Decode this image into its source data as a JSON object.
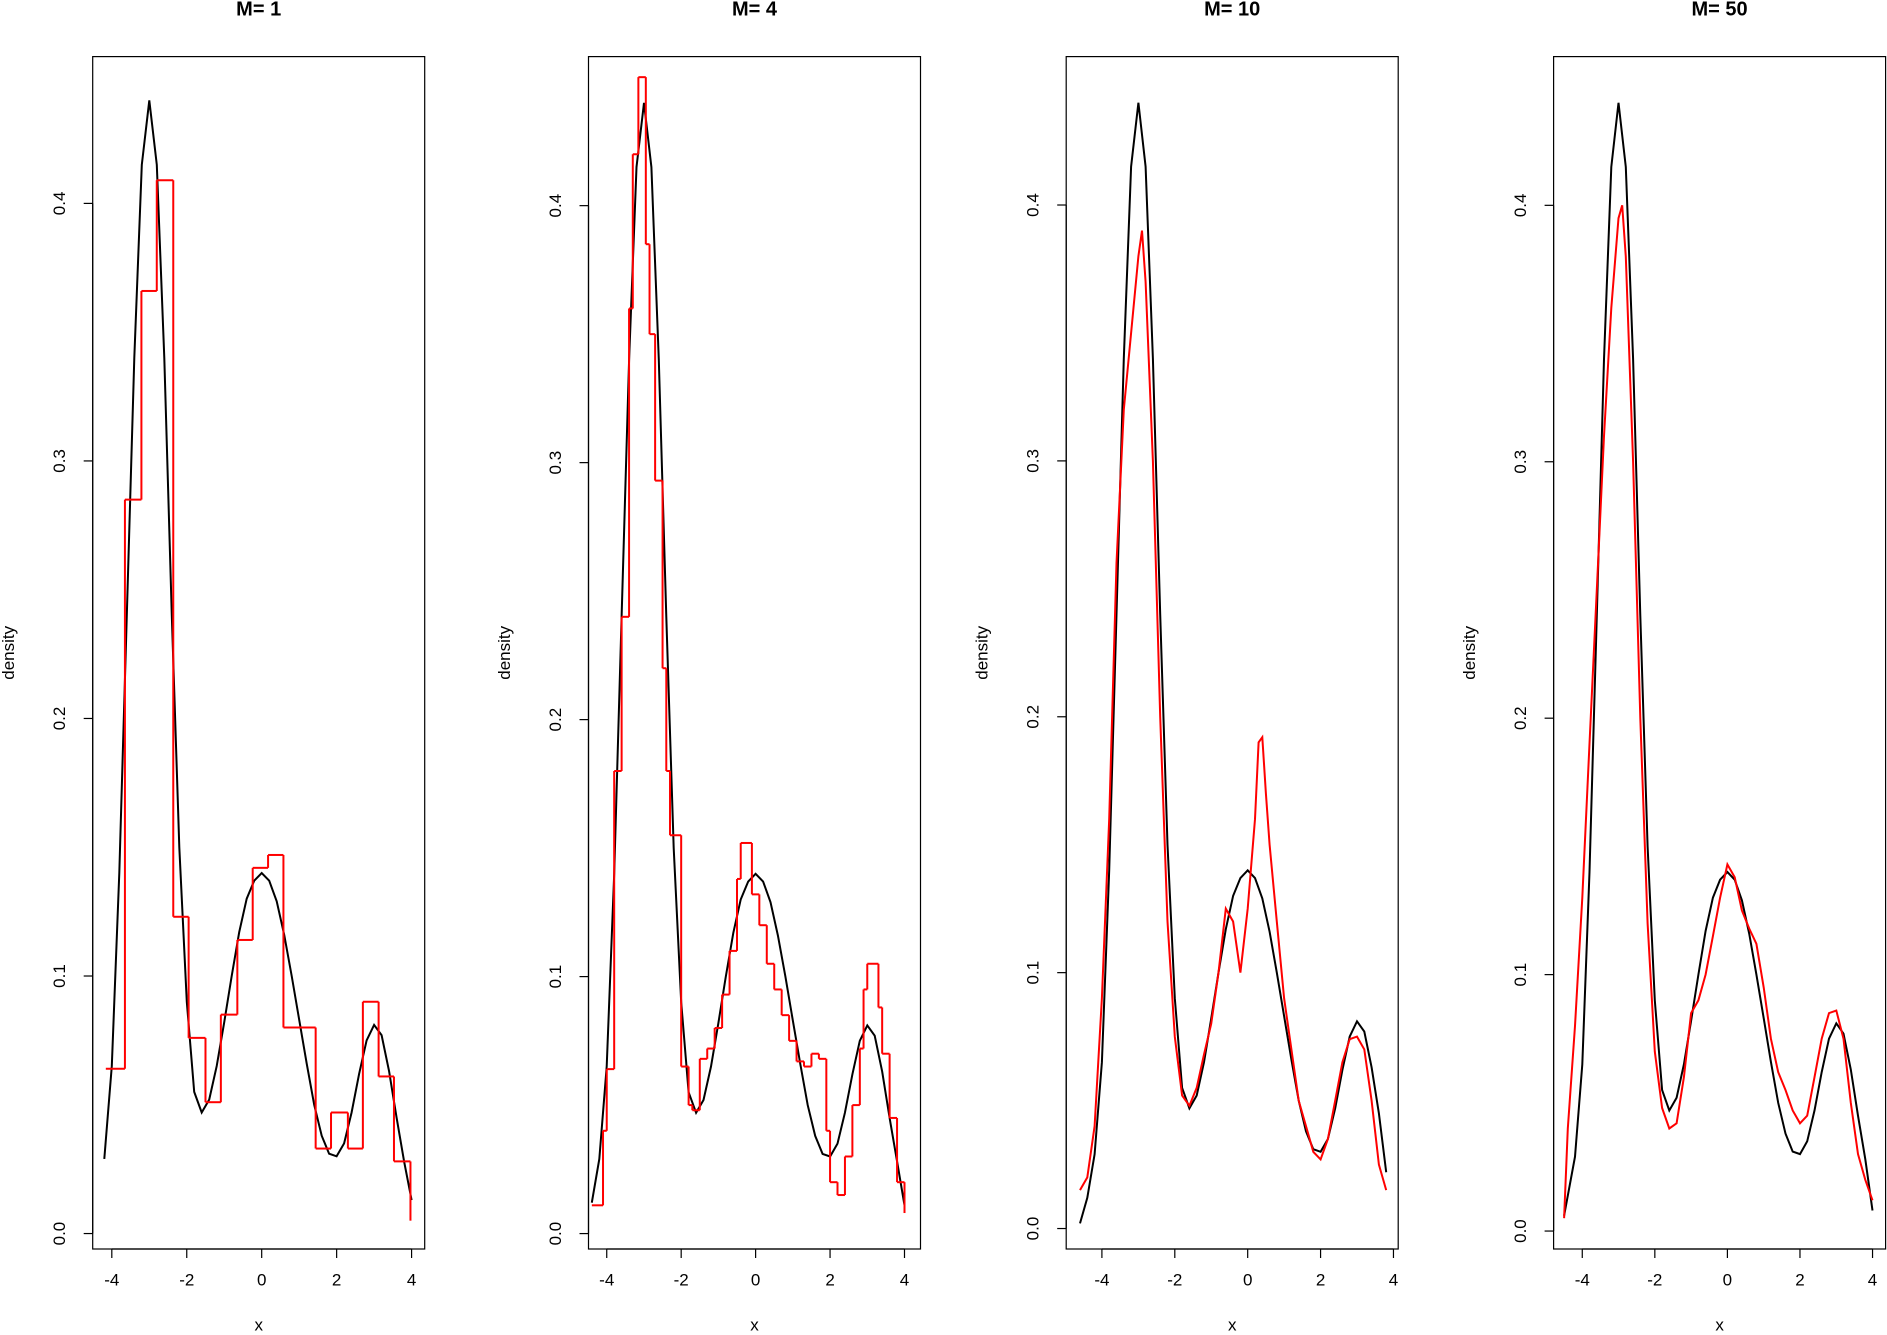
{
  "chart_data": [
    {
      "type": "line",
      "title": "M= 1",
      "xlabel": "x",
      "ylabel": "density",
      "xlim": [
        -4.51,
        4.35
      ],
      "ylim": [
        -0.006,
        0.457
      ],
      "xticks": [
        -4,
        -2,
        0,
        2,
        4
      ],
      "yticks": [
        {
          "value": 0,
          "label": "0.0"
        },
        0.1,
        0.2,
        0.3,
        0.4
      ],
      "series": [
        {
          "color": "#000000",
          "step": false,
          "x": [
            -4.2,
            -4.0,
            -3.8,
            -3.6,
            -3.4,
            -3.2,
            -3.0,
            -2.8,
            -2.6,
            -2.4,
            -2.2,
            -2.0,
            -1.8,
            -1.6,
            -1.4,
            -1.2,
            -1.0,
            -0.8,
            -0.6,
            -0.4,
            -0.2,
            0,
            0.2,
            0.4,
            0.6,
            0.8,
            1.0,
            1.2,
            1.4,
            1.6,
            1.8,
            2.0,
            2.2,
            2.4,
            2.6,
            2.8,
            3.0,
            3.2,
            3.4,
            3.6,
            3.8,
            4.0
          ],
          "values": [
            0.029,
            0.065,
            0.14,
            0.24,
            0.34,
            0.415,
            0.44,
            0.415,
            0.34,
            0.24,
            0.15,
            0.09,
            0.055,
            0.047,
            0.052,
            0.065,
            0.082,
            0.1,
            0.117,
            0.13,
            0.137,
            0.14,
            0.137,
            0.129,
            0.116,
            0.1,
            0.083,
            0.066,
            0.05,
            0.038,
            0.031,
            0.03,
            0.035,
            0.047,
            0.062,
            0.075,
            0.081,
            0.077,
            0.063,
            0.045,
            0.028,
            0.013
          ]
        },
        {
          "color": "#ff0000",
          "step": true,
          "x": [
            -4.16,
            -3.65,
            -3.21,
            -2.8,
            -2.36,
            -1.95,
            -1.5,
            -1.09,
            -0.65,
            -0.24,
            0.17,
            0.58,
            1.44,
            1.85,
            2.3,
            2.7,
            3.12,
            3.53,
            3.97
          ],
          "values": [
            0.064,
            0.285,
            0.366,
            0.409,
            0.123,
            0.076,
            0.051,
            0.085,
            0.114,
            0.142,
            0.147,
            0.08,
            0.033,
            0.047,
            0.033,
            0.09,
            0.061,
            0.028,
            0.005
          ]
        }
      ]
    },
    {
      "type": "line",
      "title": "M= 4",
      "xlabel": "x",
      "ylabel": "density",
      "xlim": [
        -4.49,
        4.43
      ],
      "ylim": [
        -0.006,
        0.458
      ],
      "xticks": [
        -4,
        -2,
        0,
        2,
        4
      ],
      "yticks": [
        {
          "value": 0,
          "label": "0.0"
        },
        0.1,
        0.2,
        0.3,
        0.4
      ],
      "series": [
        {
          "color": "#000000",
          "step": false,
          "x": [
            -4.4,
            -4.2,
            -4.0,
            -3.8,
            -3.6,
            -3.4,
            -3.2,
            -3.0,
            -2.8,
            -2.6,
            -2.4,
            -2.2,
            -2.0,
            -1.8,
            -1.6,
            -1.4,
            -1.2,
            -1.0,
            -0.8,
            -0.6,
            -0.4,
            -0.2,
            0,
            0.2,
            0.4,
            0.6,
            0.8,
            1.0,
            1.2,
            1.4,
            1.6,
            1.8,
            2.0,
            2.2,
            2.4,
            2.6,
            2.8,
            3.0,
            3.2,
            3.4,
            3.6,
            3.8,
            4.0
          ],
          "values": [
            0.012,
            0.029,
            0.065,
            0.14,
            0.24,
            0.34,
            0.415,
            0.44,
            0.415,
            0.34,
            0.24,
            0.15,
            0.09,
            0.055,
            0.047,
            0.052,
            0.065,
            0.082,
            0.1,
            0.117,
            0.13,
            0.137,
            0.14,
            0.137,
            0.129,
            0.116,
            0.1,
            0.083,
            0.066,
            0.05,
            0.038,
            0.031,
            0.03,
            0.035,
            0.047,
            0.062,
            0.075,
            0.081,
            0.077,
            0.063,
            0.045,
            0.028,
            0.011
          ]
        },
        {
          "color": "#ff0000",
          "step": true,
          "x": [
            -4.4,
            -4.1,
            -4.0,
            -3.8,
            -3.6,
            -3.4,
            -3.3,
            -3.15,
            -2.95,
            -2.85,
            -2.7,
            -2.5,
            -2.4,
            -2.3,
            -2.0,
            -1.8,
            -1.7,
            -1.5,
            -1.3,
            -1.1,
            -0.9,
            -0.7,
            -0.5,
            -0.4,
            -0.1,
            0.1,
            0.3,
            0.5,
            0.7,
            0.9,
            1.1,
            1.3,
            1.5,
            1.7,
            1.9,
            2.0,
            2.2,
            2.4,
            2.6,
            2.8,
            2.9,
            3.0,
            3.3,
            3.4,
            3.6,
            3.8,
            4.0
          ],
          "values": [
            0.011,
            0.04,
            0.064,
            0.18,
            0.24,
            0.36,
            0.42,
            0.45,
            0.385,
            0.35,
            0.293,
            0.22,
            0.18,
            0.155,
            0.065,
            0.05,
            0.048,
            0.068,
            0.072,
            0.08,
            0.093,
            0.11,
            0.138,
            0.152,
            0.132,
            0.12,
            0.105,
            0.095,
            0.085,
            0.075,
            0.067,
            0.065,
            0.07,
            0.068,
            0.04,
            0.02,
            0.015,
            0.03,
            0.05,
            0.072,
            0.095,
            0.105,
            0.088,
            0.07,
            0.045,
            0.02,
            0.008
          ]
        }
      ]
    },
    {
      "type": "line",
      "title": "M= 10",
      "xlabel": "x",
      "ylabel": "density",
      "xlim": [
        -4.98,
        4.13
      ],
      "ylim": [
        -0.008,
        0.458
      ],
      "xticks": [
        -4,
        -2,
        0,
        2,
        4
      ],
      "yticks": [
        {
          "value": 0,
          "label": "0.0"
        },
        0.1,
        0.2,
        0.3,
        0.4
      ],
      "series": [
        {
          "color": "#000000",
          "step": false,
          "x": [
            -4.6,
            -4.4,
            -4.2,
            -4.0,
            -3.8,
            -3.6,
            -3.4,
            -3.2,
            -3.0,
            -2.8,
            -2.6,
            -2.4,
            -2.2,
            -2.0,
            -1.8,
            -1.6,
            -1.4,
            -1.2,
            -1.0,
            -0.8,
            -0.6,
            -0.4,
            -0.2,
            0,
            0.2,
            0.4,
            0.6,
            0.8,
            1.0,
            1.2,
            1.4,
            1.6,
            1.8,
            2.0,
            2.2,
            2.4,
            2.6,
            2.8,
            3.0,
            3.2,
            3.4,
            3.6,
            3.8
          ],
          "values": [
            0.002,
            0.012,
            0.029,
            0.065,
            0.14,
            0.24,
            0.34,
            0.415,
            0.44,
            0.415,
            0.34,
            0.24,
            0.15,
            0.09,
            0.055,
            0.047,
            0.052,
            0.065,
            0.082,
            0.1,
            0.117,
            0.13,
            0.137,
            0.14,
            0.137,
            0.129,
            0.116,
            0.1,
            0.083,
            0.066,
            0.05,
            0.038,
            0.031,
            0.03,
            0.035,
            0.047,
            0.062,
            0.075,
            0.081,
            0.077,
            0.063,
            0.045,
            0.022
          ]
        },
        {
          "color": "#ff0000",
          "step": false,
          "x": [
            -4.6,
            -4.4,
            -4.2,
            -4.0,
            -3.8,
            -3.6,
            -3.4,
            -3.2,
            -3.0,
            -2.9,
            -2.8,
            -2.6,
            -2.4,
            -2.2,
            -2.0,
            -1.8,
            -1.6,
            -1.4,
            -1.2,
            -1.0,
            -0.8,
            -0.6,
            -0.4,
            -0.2,
            0,
            0.2,
            0.3,
            0.4,
            0.5,
            0.6,
            0.8,
            1.0,
            1.2,
            1.4,
            1.6,
            1.8,
            2.0,
            2.2,
            2.4,
            2.6,
            2.8,
            3.0,
            3.2,
            3.4,
            3.6,
            3.8
          ],
          "values": [
            0.015,
            0.02,
            0.04,
            0.09,
            0.16,
            0.26,
            0.32,
            0.35,
            0.38,
            0.39,
            0.37,
            0.3,
            0.2,
            0.12,
            0.075,
            0.052,
            0.048,
            0.055,
            0.068,
            0.08,
            0.1,
            0.125,
            0.12,
            0.1,
            0.125,
            0.16,
            0.19,
            0.192,
            0.17,
            0.15,
            0.12,
            0.09,
            0.07,
            0.05,
            0.04,
            0.03,
            0.027,
            0.035,
            0.05,
            0.065,
            0.074,
            0.075,
            0.07,
            0.05,
            0.025,
            0.015
          ]
        }
      ]
    },
    {
      "type": "line",
      "title": "M= 50",
      "xlabel": "x",
      "ylabel": "density",
      "xlim": [
        -4.79,
        4.36
      ],
      "ylim": [
        -0.007,
        0.458
      ],
      "xticks": [
        -4,
        -2,
        0,
        2,
        4
      ],
      "yticks": [
        {
          "value": 0,
          "label": "0.0"
        },
        0.1,
        0.2,
        0.3,
        0.4
      ],
      "series": [
        {
          "color": "#000000",
          "step": false,
          "x": [
            -4.5,
            -4.2,
            -4.0,
            -3.8,
            -3.6,
            -3.4,
            -3.2,
            -3.0,
            -2.8,
            -2.6,
            -2.4,
            -2.2,
            -2.0,
            -1.8,
            -1.6,
            -1.4,
            -1.2,
            -1.0,
            -0.8,
            -0.6,
            -0.4,
            -0.2,
            0,
            0.2,
            0.4,
            0.6,
            0.8,
            1.0,
            1.2,
            1.4,
            1.6,
            1.8,
            2.0,
            2.2,
            2.4,
            2.6,
            2.8,
            3.0,
            3.2,
            3.4,
            3.6,
            3.8,
            4.0
          ],
          "values": [
            0.006,
            0.029,
            0.065,
            0.14,
            0.24,
            0.34,
            0.415,
            0.44,
            0.415,
            0.34,
            0.24,
            0.15,
            0.09,
            0.055,
            0.047,
            0.052,
            0.065,
            0.082,
            0.1,
            0.117,
            0.13,
            0.137,
            0.14,
            0.137,
            0.129,
            0.116,
            0.1,
            0.083,
            0.066,
            0.05,
            0.038,
            0.031,
            0.03,
            0.035,
            0.047,
            0.062,
            0.075,
            0.081,
            0.077,
            0.063,
            0.045,
            0.028,
            0.008
          ]
        },
        {
          "color": "#ff0000",
          "step": false,
          "x": [
            -4.5,
            -4.4,
            -4.2,
            -4.0,
            -3.8,
            -3.6,
            -3.4,
            -3.2,
            -3.0,
            -2.9,
            -2.8,
            -2.6,
            -2.4,
            -2.2,
            -2.0,
            -1.8,
            -1.6,
            -1.4,
            -1.2,
            -1.0,
            -0.8,
            -0.6,
            -0.4,
            -0.2,
            0,
            0.2,
            0.4,
            0.6,
            0.8,
            1.0,
            1.2,
            1.4,
            1.6,
            1.8,
            2.0,
            2.2,
            2.4,
            2.6,
            2.8,
            3.0,
            3.2,
            3.4,
            3.6,
            3.8,
            4.0
          ],
          "values": [
            0.005,
            0.04,
            0.08,
            0.13,
            0.19,
            0.25,
            0.31,
            0.36,
            0.395,
            0.4,
            0.38,
            0.3,
            0.2,
            0.12,
            0.07,
            0.048,
            0.04,
            0.042,
            0.06,
            0.085,
            0.09,
            0.1,
            0.115,
            0.13,
            0.143,
            0.138,
            0.125,
            0.118,
            0.112,
            0.095,
            0.075,
            0.062,
            0.055,
            0.047,
            0.042,
            0.045,
            0.06,
            0.075,
            0.085,
            0.086,
            0.075,
            0.05,
            0.03,
            0.02,
            0.012
          ]
        }
      ]
    }
  ]
}
